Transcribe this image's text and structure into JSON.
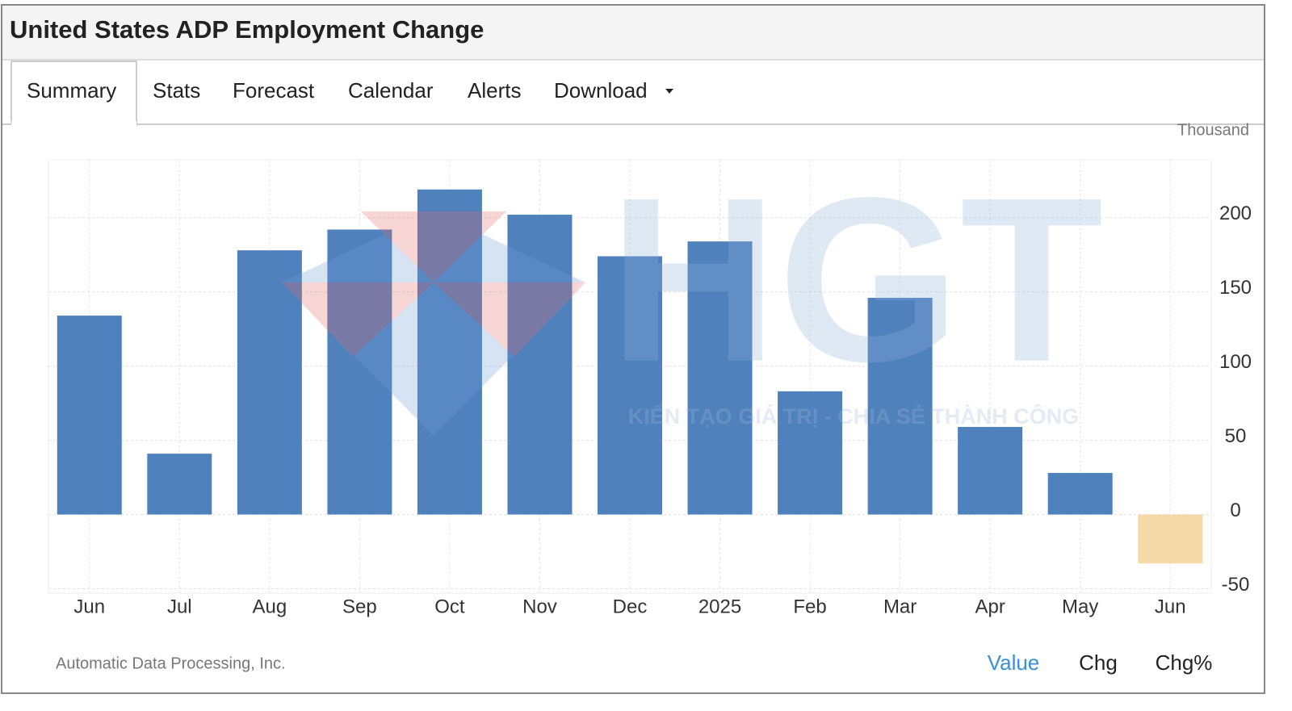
{
  "header": {
    "title": "United States ADP Employment Change"
  },
  "tabs": [
    "Summary",
    "Stats",
    "Forecast",
    "Calendar",
    "Alerts",
    "Download"
  ],
  "footer": {
    "source": "Automatic Data Processing, Inc.",
    "views": [
      "Value",
      "Chg",
      "Chg%"
    ]
  },
  "watermark": {
    "logo": "HGT",
    "slogan": "KIẾN TẠO GIÁ TRỊ - CHIA SẺ THÀNH CÔNG"
  },
  "chart_data": {
    "type": "bar",
    "unit": "Thousand",
    "categories": [
      "Jun",
      "Jul",
      "Aug",
      "Sep",
      "Oct",
      "Nov",
      "Dec",
      "2025",
      "Feb",
      "Mar",
      "Apr",
      "May",
      "Jun"
    ],
    "values": [
      134,
      41,
      178,
      192,
      219,
      202,
      174,
      184,
      83,
      146,
      59,
      28,
      -33
    ],
    "colors": [
      "#4f81bd",
      "#4f81bd",
      "#4f81bd",
      "#4f81bd",
      "#4f81bd",
      "#4f81bd",
      "#4f81bd",
      "#4f81bd",
      "#4f81bd",
      "#4f81bd",
      "#4f81bd",
      "#4f81bd",
      "#f5d9a8"
    ],
    "ylim": [
      -53,
      239
    ],
    "yticks": [
      -50,
      0,
      50,
      100,
      150,
      200
    ],
    "grid": true
  }
}
